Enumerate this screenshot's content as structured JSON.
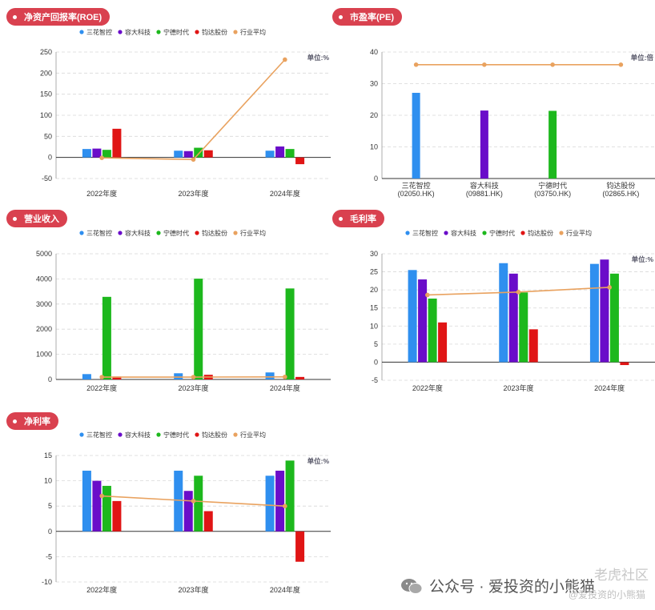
{
  "colors": {
    "pill": "#d9414f",
    "sanhua": "#2f8fef",
    "rongda": "#6a0dc9",
    "ningde": "#1db81d",
    "junda": "#e01515",
    "avg": "#e9a25f"
  },
  "legend_labels": [
    "三花智控",
    "容大科技",
    "宁德时代",
    "钧达股份",
    "行业平均"
  ],
  "chart_data": [
    {
      "id": "roe",
      "type": "bar",
      "title": "净资产回报率(ROE)",
      "unit_label": "单位:%",
      "categories": [
        "2022年度",
        "2023年度",
        "2024年度"
      ],
      "ylim": [
        -50,
        250
      ],
      "yticks": [
        -50,
        0,
        50,
        100,
        150,
        200,
        250
      ],
      "grid": true,
      "legend": "top-center",
      "series": [
        {
          "name": "三花智控",
          "values": [
            20,
            16,
            16
          ]
        },
        {
          "name": "容大科技",
          "values": [
            21,
            15,
            26
          ]
        },
        {
          "name": "宁德时代",
          "values": [
            18,
            23,
            20
          ]
        },
        {
          "name": "钧达股份",
          "values": [
            68,
            17,
            -16
          ]
        }
      ],
      "line": {
        "name": "行业平均",
        "values": [
          -1,
          -5,
          232
        ]
      }
    },
    {
      "id": "pe",
      "type": "bar",
      "title": "市盈率(PE)",
      "unit_label": "单位:倍",
      "categories": [
        "三花智控\n(02050.HK)",
        "容大科技\n(09881.HK)",
        "宁德时代\n(03750.HK)",
        "钧达股份\n(02865.HK)"
      ],
      "ylim": [
        0,
        40
      ],
      "yticks": [
        0,
        10,
        20,
        30,
        40
      ],
      "grid": true,
      "series": [
        {
          "values": [
            27.1,
            21.5,
            21.4,
            0
          ]
        }
      ],
      "series_colors": [
        "#2f8fef",
        "#6a0dc9",
        "#1db81d",
        "#e01515"
      ],
      "line": {
        "name": "行业平均",
        "values": [
          36,
          36,
          36,
          36
        ]
      }
    },
    {
      "id": "revenue",
      "type": "bar",
      "title": "营业收入",
      "unit_label": "",
      "categories": [
        "2022年度",
        "2023年度",
        "2024年度"
      ],
      "ylim": [
        0,
        5000
      ],
      "yticks": [
        0,
        1000,
        2000,
        3000,
        4000,
        5000
      ],
      "grid": true,
      "legend": "top-center",
      "series": [
        {
          "name": "三花智控",
          "values": [
            213,
            246,
            279
          ]
        },
        {
          "name": "容大科技",
          "values": [
            0,
            0,
            0
          ]
        },
        {
          "name": "宁德时代",
          "values": [
            3286,
            4009,
            3620
          ]
        },
        {
          "name": "钧达股份",
          "values": [
            116,
            186,
            100
          ]
        }
      ],
      "line": {
        "name": "行业平均",
        "values": [
          95,
          95,
          100
        ]
      }
    },
    {
      "id": "gross",
      "type": "bar",
      "title": "毛利率",
      "unit_label": "单位:%",
      "categories": [
        "2022年度",
        "2023年度",
        "2024年度"
      ],
      "ylim": [
        -5,
        30
      ],
      "yticks": [
        -5,
        0,
        5,
        10,
        15,
        20,
        25,
        30
      ],
      "grid": true,
      "legend": "top-center",
      "series": [
        {
          "name": "三花智控",
          "values": [
            25.5,
            27.4,
            27.2
          ]
        },
        {
          "name": "容大科技",
          "values": [
            22.9,
            24.5,
            28.4
          ]
        },
        {
          "name": "宁德时代",
          "values": [
            17.6,
            19.3,
            24.5
          ]
        },
        {
          "name": "钧达股份",
          "values": [
            11.0,
            9.1,
            -0.8
          ]
        }
      ],
      "line": {
        "name": "行业平均",
        "values": [
          18.6,
          19.4,
          20.7
        ]
      }
    },
    {
      "id": "net",
      "type": "bar",
      "title": "净利率",
      "unit_label": "单位:%",
      "categories": [
        "2022年度",
        "2023年度",
        "2024年度"
      ],
      "ylim": [
        -10,
        15
      ],
      "yticks": [
        -10,
        -5,
        0,
        5,
        10,
        15
      ],
      "grid": true,
      "legend": "top-center",
      "series": [
        {
          "name": "三花智控",
          "values": [
            12,
            12,
            11
          ]
        },
        {
          "name": "容大科技",
          "values": [
            10,
            8,
            12
          ]
        },
        {
          "name": "宁德时代",
          "values": [
            9,
            11,
            14
          ]
        },
        {
          "name": "钧达股份",
          "values": [
            6,
            4,
            -6
          ]
        }
      ],
      "line": {
        "name": "行业平均",
        "values": [
          7,
          6,
          5
        ]
      }
    }
  ],
  "footer": {
    "brand_text": "公众号 · 爱投资的小熊猫",
    "watermark_main": "老虎社区",
    "watermark_sub": "@爱投资的小熊猫"
  }
}
